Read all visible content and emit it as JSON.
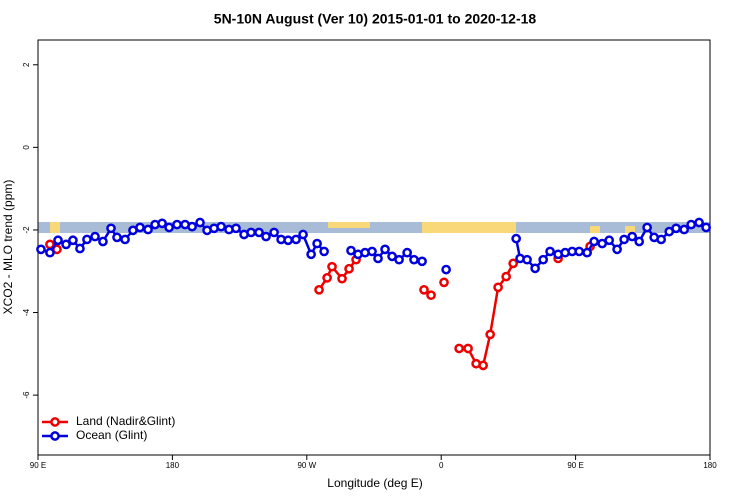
{
  "chart_data": {
    "type": "line",
    "title": "5N-10N August (Ver 10)   2015-01-01 to 2020-12-18",
    "x_label": "Longitude (deg E)",
    "y_label": "XCO2 - MLO trend (ppm)",
    "xlim": [
      90,
      540
    ],
    "ylim": [
      -7.45,
      2.6
    ],
    "xticks": [
      {
        "value": 90,
        "label": "90 E"
      },
      180,
      {
        "value": 270,
        "label": "90 W"
      },
      {
        "value": 360,
        "label": "0"
      },
      {
        "value": 450,
        "label": "90 E"
      },
      {
        "value": 540,
        "label": "180"
      }
    ],
    "yticks": [
      -6,
      -4,
      -2,
      0,
      2
    ],
    "legend": "bottom-left",
    "series": [
      {
        "name": "Land (Nadir&Glint)",
        "color": "#ee0000",
        "x": [
          98.0,
          102.7,
          null,
          278.2,
          283.6,
          286.9,
          293.6,
          298.3,
          303.0,
          null,
          348.5,
          353.2,
          null,
          361.9,
          null,
          372.0,
          378.0,
          383.4,
          388.1,
          392.8,
          398.1,
          403.5,
          408.2,
          null,
          438.3,
          null,
          459.7
        ],
        "values": [
          -2.35,
          -2.47,
          null,
          -3.45,
          -3.16,
          -2.89,
          -3.18,
          -2.94,
          -2.72,
          null,
          -3.45,
          -3.58,
          null,
          -3.27,
          null,
          -4.87,
          -4.87,
          -5.24,
          -5.28,
          -4.53,
          -3.39,
          -3.13,
          -2.81,
          null,
          -2.69,
          null,
          -2.4
        ]
      },
      {
        "name": "Ocean (Glint)",
        "color": "#0000dd",
        "x": [
          92.0,
          98.0,
          103.4,
          108.8,
          113.4,
          118.1,
          122.8,
          128.2,
          133.5,
          138.9,
          142.9,
          148.3,
          153.6,
          158.3,
          163.7,
          168.4,
          173.1,
          177.8,
          183.1,
          188.5,
          193.2,
          198.5,
          203.2,
          207.9,
          212.6,
          217.9,
          222.6,
          228.0,
          232.7,
          238.0,
          242.7,
          248.1,
          252.8,
          257.5,
          262.8,
          267.5,
          272.9,
          276.9,
          281.6,
          null,
          299.6,
          304.3,
          309.0,
          313.7,
          317.7,
          322.4,
          327.1,
          331.8,
          337.2,
          341.8,
          347.2,
          null,
          363.3,
          null,
          410.2,
          412.8,
          417.5,
          422.9,
          428.3,
          432.9,
          438.3,
          443.0,
          447.7,
          452.4,
          457.7,
          462.4,
          467.8,
          472.5,
          477.8,
          482.5,
          487.9,
          492.6,
          497.9,
          502.6,
          507.3,
          512.7,
          517.3,
          522.7,
          527.4,
          532.7,
          537.4
        ],
        "values": [
          -2.47,
          -2.55,
          -2.25,
          -2.35,
          -2.25,
          -2.45,
          -2.23,
          -2.16,
          -2.28,
          -1.96,
          -2.18,
          -2.23,
          -2.01,
          -1.94,
          -1.99,
          -1.87,
          -1.84,
          -1.94,
          -1.87,
          -1.87,
          -1.92,
          -1.82,
          -2.01,
          -1.96,
          -1.92,
          -1.99,
          -1.96,
          -2.11,
          -2.06,
          -2.06,
          -2.16,
          -2.06,
          -2.23,
          -2.25,
          -2.23,
          -2.11,
          -2.59,
          -2.33,
          -2.52,
          null,
          -2.5,
          -2.59,
          -2.55,
          -2.52,
          -2.69,
          -2.47,
          -2.64,
          -2.72,
          -2.55,
          -2.72,
          -2.76,
          null,
          -2.96,
          null,
          -2.21,
          -2.69,
          -2.72,
          -2.93,
          -2.72,
          -2.52,
          -2.59,
          -2.55,
          -2.52,
          -2.52,
          -2.55,
          -2.28,
          -2.33,
          -2.25,
          -2.47,
          -2.23,
          -2.16,
          -2.28,
          -1.94,
          -2.18,
          -2.23,
          -2.04,
          -1.96,
          -1.99,
          -1.87,
          -1.82,
          -1.94
        ]
      }
    ]
  }
}
